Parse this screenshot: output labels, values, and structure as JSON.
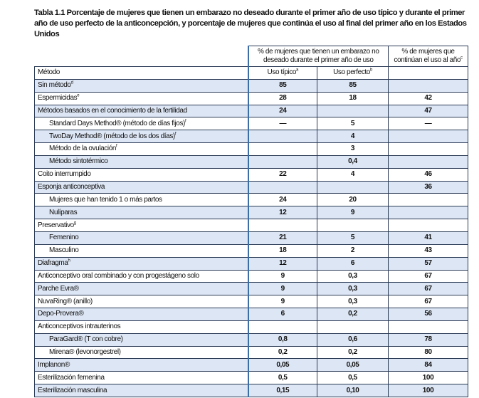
{
  "title": "Tabla 1.1 Porcentaje de mujeres que tienen un embarazo no deseado durante el primer año de uso típico y durante el primer año de uso perfecto de la anticoncepción, y porcentaje de mujeres que continúa el uso al final del primer año en los Estados Unidos",
  "header": {
    "group1": "% de mujeres que tienen un embarazo no deseado durante el primer año de uso",
    "group2": "% de mujeres que continúan el uso al año",
    "group2_sup": "c",
    "col_method": "Método",
    "col_typical": "Uso típico",
    "col_typical_sup": "a",
    "col_perfect": "Uso perfecto",
    "col_perfect_sup": "b"
  },
  "rows": [
    {
      "method": "Sin método",
      "sup": "d",
      "typical": "85",
      "perfect": "85",
      "continue": ""
    },
    {
      "method": "Espermicidas",
      "sup": "e",
      "typical": "28",
      "perfect": "18",
      "continue": "42"
    },
    {
      "method": "Métodos basados en el conocimiento de la fertilidad",
      "sup": "",
      "typical": "24",
      "perfect": "",
      "continue": "47"
    },
    {
      "method": "Standard Days Method® (método de días fijos)",
      "sup": "f",
      "typical": "—",
      "perfect": "5",
      "continue": "—",
      "indent": true
    },
    {
      "method": "TwoDay Method® (método de los dos días)",
      "sup": "f",
      "typical": "",
      "perfect": "4",
      "continue": "",
      "indent": true
    },
    {
      "method": "Método de la ovulación",
      "sup": "f",
      "typical": "",
      "perfect": "3",
      "continue": "",
      "indent": true
    },
    {
      "method": "Método sintotérmico",
      "sup": "",
      "typical": "",
      "perfect": "0,4",
      "continue": "",
      "indent": true
    },
    {
      "method": "Coito interrumpido",
      "sup": "",
      "typical": "22",
      "perfect": "4",
      "continue": "46"
    },
    {
      "method": "Esponja anticonceptiva",
      "sup": "",
      "typical": "",
      "perfect": "",
      "continue": "36"
    },
    {
      "method": "Mujeres que han tenido 1 o más partos",
      "sup": "",
      "typical": "24",
      "perfect": "20",
      "continue": "",
      "indent": true
    },
    {
      "method": "Nulíparas",
      "sup": "",
      "typical": "12",
      "perfect": "9",
      "continue": "",
      "indent": true
    },
    {
      "method": "Preservativo",
      "sup": "g",
      "typical": "",
      "perfect": "",
      "continue": ""
    },
    {
      "method": "Femenino",
      "sup": "",
      "typical": "21",
      "perfect": "5",
      "continue": "41",
      "indent": true
    },
    {
      "method": "Masculino",
      "sup": "",
      "typical": "18",
      "perfect": "2",
      "continue": "43",
      "indent": true
    },
    {
      "method": "Diafragma",
      "sup": "h",
      "typical": "12",
      "perfect": "6",
      "continue": "57"
    },
    {
      "method": "Anticonceptivo oral combinado y con progestágeno solo",
      "sup": "",
      "typical": "9",
      "perfect": "0,3",
      "continue": "67"
    },
    {
      "method": "Parche Evra®",
      "sup": "",
      "typical": "9",
      "perfect": "0,3",
      "continue": "67"
    },
    {
      "method": "NuvaRing® (anillo)",
      "sup": "",
      "typical": "9",
      "perfect": "0,3",
      "continue": "67"
    },
    {
      "method": "Depo-Provera®",
      "sup": "",
      "typical": "6",
      "perfect": "0,2",
      "continue": "56"
    },
    {
      "method": "Anticonceptivos intrauterinos",
      "sup": "",
      "typical": "",
      "perfect": "",
      "continue": ""
    },
    {
      "method": "ParaGard® (T con cobre)",
      "sup": "",
      "typical": "0,8",
      "perfect": "0,6",
      "continue": "78",
      "indent": true
    },
    {
      "method": "Mirena® (levonorgestrel)",
      "sup": "",
      "typical": "0,2",
      "perfect": "0,2",
      "continue": "80",
      "indent": true
    },
    {
      "method": "Implanon®",
      "sup": "",
      "typical": "0,05",
      "perfect": "0,05",
      "continue": "84"
    },
    {
      "method": "Esterilización femenina",
      "sup": "",
      "typical": "0,5",
      "perfect": "0,5",
      "continue": "100"
    },
    {
      "method": "Esterilización masculina",
      "sup": "",
      "typical": "0,15",
      "perfect": "0,10",
      "continue": "100"
    }
  ]
}
